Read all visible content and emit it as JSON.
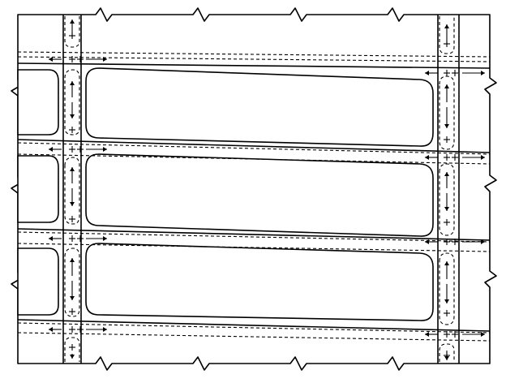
{
  "title": "",
  "legend": [],
  "colors": {
    "line": "#000000",
    "background": "#ffffff"
  },
  "description_elements": {
    "blocks": 3,
    "partial_blocks_left": 3,
    "horizontal_dashed_corridors": 4,
    "vertical_dashed_corridors_per_side": 4,
    "break_symbols": "zigzag",
    "junction_marker": "plus-sign",
    "flow_indicator": "arrow"
  }
}
